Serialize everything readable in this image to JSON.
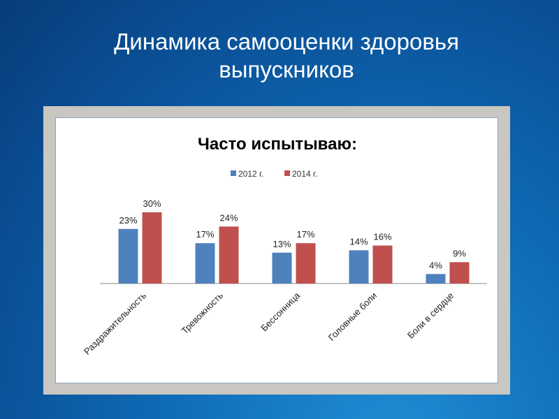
{
  "slide": {
    "title_line1": "Динамика самооценки  здоровья",
    "title_line2": "выпускников"
  },
  "chart_data": {
    "type": "bar",
    "title": "Часто испытываю:",
    "categories": [
      "Раздражительность",
      "Тревожность",
      "Бессонница",
      "Головные боли",
      "Боли в сердце"
    ],
    "series": [
      {
        "name": "2012 г.",
        "color": "#4f81bd",
        "values": [
          23,
          17,
          13,
          14,
          4
        ]
      },
      {
        "name": "2014 г.",
        "color": "#c0504d",
        "values": [
          30,
          24,
          17,
          16,
          9
        ]
      }
    ],
    "value_suffix": "%",
    "legend": "top-center",
    "ylim": [
      0,
      30
    ],
    "grid": false
  }
}
